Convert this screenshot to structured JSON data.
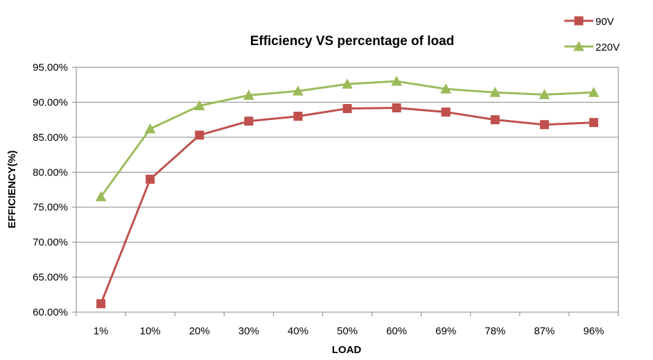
{
  "chart_data": {
    "type": "line",
    "title": "Efficiency VS percentage of load",
    "xlabel": "LOAD",
    "ylabel": "EFFICIENCY(%)",
    "categories": [
      "1%",
      "10%",
      "20%",
      "30%",
      "40%",
      "50%",
      "60%",
      "69%",
      "78%",
      "87%",
      "96%"
    ],
    "ylim": [
      60,
      95
    ],
    "yticks": [
      "60.00%",
      "65.00%",
      "70.00%",
      "75.00%",
      "80.00%",
      "85.00%",
      "90.00%",
      "95.00%"
    ],
    "grid": true,
    "legend_position": "top-right",
    "series": [
      {
        "name": "90V",
        "marker": "square",
        "color": "#C0504D",
        "values": [
          61.2,
          79.0,
          85.3,
          87.3,
          88.0,
          89.1,
          89.2,
          88.6,
          87.5,
          86.8,
          87.1
        ]
      },
      {
        "name": "220V",
        "marker": "triangle",
        "color": "#9BBB59",
        "values": [
          76.5,
          86.2,
          89.5,
          91.0,
          91.6,
          92.6,
          93.0,
          91.9,
          91.4,
          91.1,
          91.4
        ]
      }
    ]
  }
}
